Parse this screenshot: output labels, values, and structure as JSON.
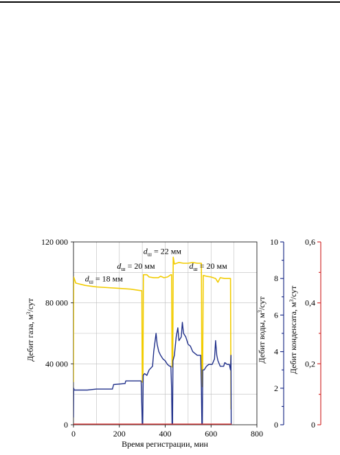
{
  "chart_data": {
    "type": "line",
    "xlabel": "Время регистрации, мин",
    "xlim": [
      0,
      800
    ],
    "x_ticks": [
      "0",
      "200",
      "400",
      "600",
      "800"
    ],
    "grid": true,
    "axes": {
      "gas": {
        "label_pre": "Дебит газа, м",
        "label_sup": "3",
        "label_post": "/сут",
        "ylim": [
          0,
          120000
        ],
        "ticks": [
          "0",
          "40 000",
          "80 000",
          "120 000"
        ]
      },
      "water": {
        "label_pre": "Дебит воды, м",
        "label_sup": "3",
        "label_post": "/сут",
        "ylim": [
          0,
          10
        ],
        "ticks": [
          "0",
          "2",
          "4",
          "6",
          "8",
          "10"
        ],
        "color": "#1f2f8a"
      },
      "condensate": {
        "label_pre": "Дебит конденсата, м",
        "label_sup": "3",
        "label_post": "/сут",
        "ylim": [
          0,
          0.6
        ],
        "ticks": [
          "0",
          "0,2",
          "0,4",
          "0,6"
        ],
        "color": "#d32f2f"
      }
    },
    "annotations": [
      {
        "var": "d",
        "sub": "ш",
        "text": " = 18 мм",
        "x": 50,
        "y_gas": 94000
      },
      {
        "var": "d",
        "sub": "ш",
        "text": " = 20 мм",
        "x": 190,
        "y_gas": 102500
      },
      {
        "var": "d",
        "sub": "ш",
        "text": " = 22 мм",
        "x": 305,
        "y_gas": 112000
      },
      {
        "var": "d",
        "sub": "ш",
        "text": " = 20 мм",
        "x": 505,
        "y_gas": 102500
      }
    ],
    "series": [
      {
        "axis": "gas",
        "color": "#f2cc00",
        "points": [
          [
            0,
            28000
          ],
          [
            1,
            97000
          ],
          [
            10,
            93000
          ],
          [
            50,
            91500
          ],
          [
            100,
            90500
          ],
          [
            150,
            90000
          ],
          [
            200,
            89500
          ],
          [
            250,
            89000
          ],
          [
            295,
            88000
          ],
          [
            298,
            88000
          ],
          [
            300,
            28000
          ],
          [
            303,
            28000
          ],
          [
            305,
            98500
          ],
          [
            320,
            98500
          ],
          [
            330,
            97000
          ],
          [
            350,
            96500
          ],
          [
            370,
            96500
          ],
          [
            380,
            97500
          ],
          [
            395,
            96500
          ],
          [
            410,
            97000
          ],
          [
            425,
            98500
          ],
          [
            428,
            98500
          ],
          [
            430,
            38000
          ],
          [
            433,
            38000
          ],
          [
            435,
            110000
          ],
          [
            440,
            105500
          ],
          [
            460,
            106500
          ],
          [
            480,
            106000
          ],
          [
            500,
            106000
          ],
          [
            520,
            106500
          ],
          [
            540,
            106000
          ],
          [
            555,
            106000
          ],
          [
            558,
            106000
          ],
          [
            560,
            25000
          ],
          [
            563,
            25000
          ],
          [
            566,
            98000
          ],
          [
            580,
            97500
          ],
          [
            600,
            97000
          ],
          [
            620,
            96000
          ],
          [
            630,
            93500
          ],
          [
            640,
            96500
          ],
          [
            660,
            96000
          ],
          [
            685,
            96000
          ],
          [
            687,
            10000
          ]
        ]
      },
      {
        "axis": "water",
        "color": "#1f2f8a",
        "points": [
          [
            0,
            0.4
          ],
          [
            1,
            2.0
          ],
          [
            3,
            1.9
          ],
          [
            20,
            1.9
          ],
          [
            60,
            1.9
          ],
          [
            100,
            1.95
          ],
          [
            150,
            1.95
          ],
          [
            170,
            1.95
          ],
          [
            175,
            2.2
          ],
          [
            225,
            2.25
          ],
          [
            228,
            2.4
          ],
          [
            260,
            2.4
          ],
          [
            295,
            2.4
          ],
          [
            298,
            1.0
          ],
          [
            300,
            0
          ],
          [
            302,
            0
          ],
          [
            304,
            2.7
          ],
          [
            310,
            2.8
          ],
          [
            320,
            2.7
          ],
          [
            330,
            3.0
          ],
          [
            345,
            3.2
          ],
          [
            350,
            4.0
          ],
          [
            355,
            4.5
          ],
          [
            360,
            5.0
          ],
          [
            365,
            4.4
          ],
          [
            372,
            4.0
          ],
          [
            380,
            3.8
          ],
          [
            390,
            3.6
          ],
          [
            400,
            3.5
          ],
          [
            410,
            3.3
          ],
          [
            420,
            3.2
          ],
          [
            425,
            3.2
          ],
          [
            428,
            2.0
          ],
          [
            430,
            0
          ],
          [
            432,
            0
          ],
          [
            434,
            3.5
          ],
          [
            440,
            3.8
          ],
          [
            448,
            4.8
          ],
          [
            455,
            5.3
          ],
          [
            460,
            4.6
          ],
          [
            470,
            4.8
          ],
          [
            475,
            5.6
          ],
          [
            480,
            5.0
          ],
          [
            490,
            4.8
          ],
          [
            500,
            4.4
          ],
          [
            510,
            4.3
          ],
          [
            520,
            4.0
          ],
          [
            530,
            3.9
          ],
          [
            540,
            3.8
          ],
          [
            555,
            3.8
          ],
          [
            558,
            2.0
          ],
          [
            560,
            0
          ],
          [
            562,
            0
          ],
          [
            564,
            3.0
          ],
          [
            570,
            3.0
          ],
          [
            580,
            3.2
          ],
          [
            590,
            3.3
          ],
          [
            605,
            3.3
          ],
          [
            615,
            3.6
          ],
          [
            620,
            4.6
          ],
          [
            625,
            3.8
          ],
          [
            630,
            3.5
          ],
          [
            640,
            3.2
          ],
          [
            655,
            3.2
          ],
          [
            660,
            3.4
          ],
          [
            670,
            3.3
          ],
          [
            680,
            3.3
          ],
          [
            685,
            3.0
          ],
          [
            687,
            3.8
          ],
          [
            688,
            0
          ]
        ]
      },
      {
        "axis": "condensate",
        "color": "#d32f2f",
        "points": [
          [
            0,
            0.002
          ],
          [
            690,
            0.002
          ]
        ]
      }
    ]
  }
}
